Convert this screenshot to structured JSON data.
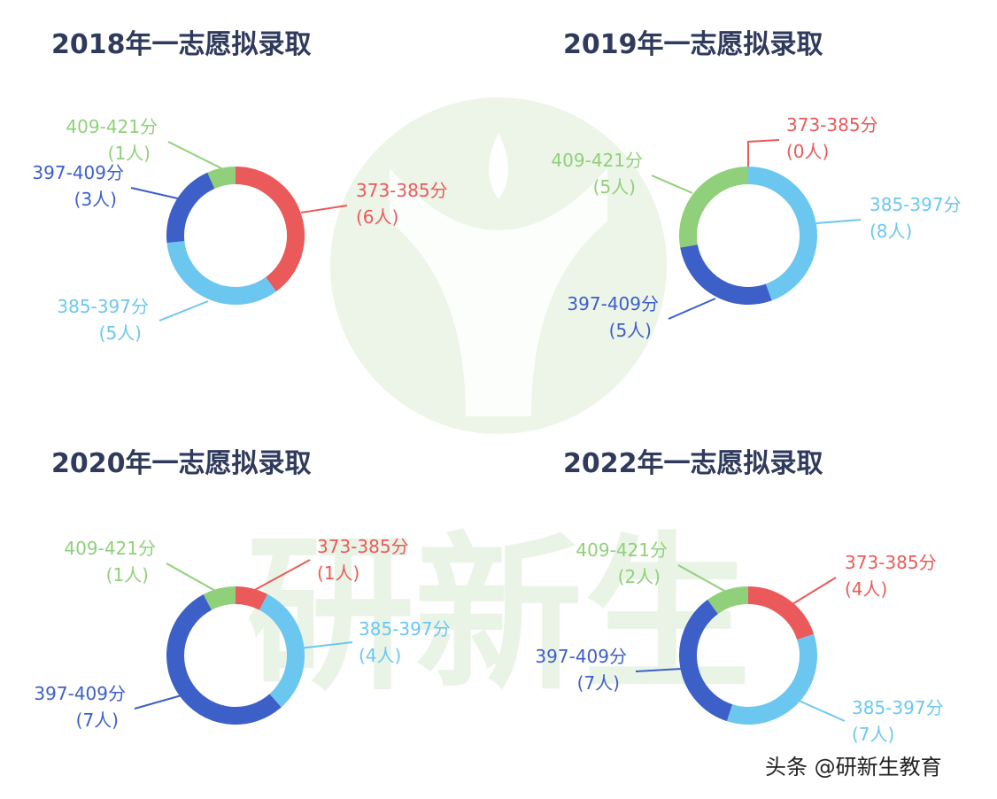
{
  "colors": {
    "red": "#ea5a5a",
    "lightblue": "#6cc7f0",
    "darkblue": "#3d5fc8",
    "green": "#90d07a",
    "watermark": "#eaf4e6"
  },
  "watermark_text": "研新生",
  "credit": "头条 @研新生教育",
  "chart_data": [
    {
      "type": "pie",
      "title": "2018年一志愿拟录取",
      "slices": [
        {
          "range": "373-385分",
          "count_label": "(6人)",
          "value": 6,
          "color": "red"
        },
        {
          "range": "385-397分",
          "count_label": "(5人)",
          "value": 5,
          "color": "lightblue"
        },
        {
          "range": "397-409分",
          "count_label": "(3人)",
          "value": 3,
          "color": "darkblue"
        },
        {
          "range": "409-421分",
          "count_label": "(1人)",
          "value": 1,
          "color": "green"
        }
      ]
    },
    {
      "type": "pie",
      "title": "2019年一志愿拟录取",
      "slices": [
        {
          "range": "373-385分",
          "count_label": "(0人)",
          "value": 0,
          "color": "red"
        },
        {
          "range": "385-397分",
          "count_label": "(8人)",
          "value": 8,
          "color": "lightblue"
        },
        {
          "range": "397-409分",
          "count_label": "(5人)",
          "value": 5,
          "color": "darkblue"
        },
        {
          "range": "409-421分",
          "count_label": "(5人)",
          "value": 5,
          "color": "green"
        }
      ]
    },
    {
      "type": "pie",
      "title": "2020年一志愿拟录取",
      "slices": [
        {
          "range": "373-385分",
          "count_label": "(1人)",
          "value": 1,
          "color": "red"
        },
        {
          "range": "385-397分",
          "count_label": "(4人)",
          "value": 4,
          "color": "lightblue"
        },
        {
          "range": "397-409分",
          "count_label": "(7人)",
          "value": 7,
          "color": "darkblue"
        },
        {
          "range": "409-421分",
          "count_label": "(1人)",
          "value": 1,
          "color": "green"
        }
      ]
    },
    {
      "type": "pie",
      "title": "2022年一志愿拟录取",
      "slices": [
        {
          "range": "373-385分",
          "count_label": "(4人)",
          "value": 4,
          "color": "red"
        },
        {
          "range": "385-397分",
          "count_label": "(7人)",
          "value": 7,
          "color": "lightblue"
        },
        {
          "range": "397-409分",
          "count_label": "(7人)",
          "value": 7,
          "color": "darkblue"
        },
        {
          "range": "409-421分",
          "count_label": "(2人)",
          "value": 2,
          "color": "green"
        }
      ]
    }
  ]
}
